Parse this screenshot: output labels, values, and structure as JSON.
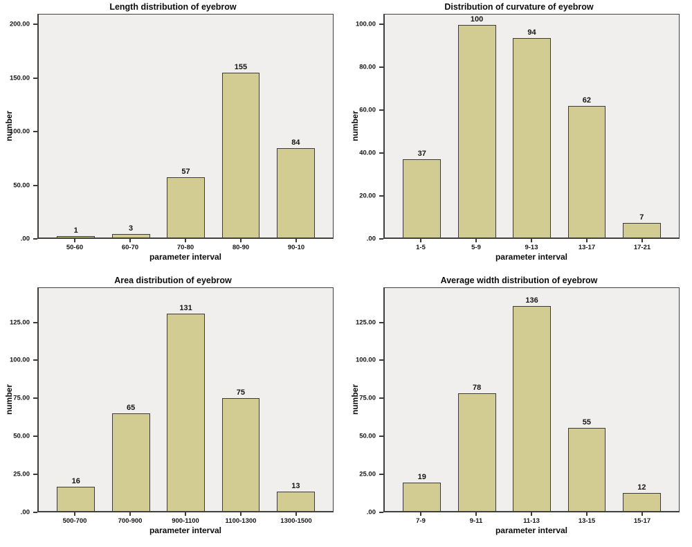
{
  "colors": {
    "page_background": "#ffffff",
    "plot_background": "#f0efee",
    "bar_fill": "#d2cc93",
    "bar_border": "#3a3a33",
    "axis_frame": "#3f3f3f",
    "text": "#111111"
  },
  "chart_data": [
    {
      "type": "bar",
      "title": "Length distribution of eyebrow",
      "xlabel": "parameter interval",
      "ylabel": "number",
      "categories": [
        "50-60",
        "60-70",
        "70-80",
        "80-90",
        "90-10"
      ],
      "values": [
        1,
        3,
        57,
        155,
        84
      ],
      "yticks": [
        {
          "value": 0,
          "label": ".00"
        },
        {
          "value": 50,
          "label": "50.00"
        },
        {
          "value": 100,
          "label": "100.00"
        },
        {
          "value": 150,
          "label": "150.00"
        },
        {
          "value": 200,
          "label": "200.00"
        }
      ],
      "ylim": [
        0,
        210
      ],
      "grid": false,
      "legend": "none"
    },
    {
      "type": "bar",
      "title": "Distribution of  curvature of eyebrow",
      "xlabel": "parameter interval",
      "ylabel": "number",
      "categories": [
        "1-5",
        "5-9",
        "9-13",
        "13-17",
        "17-21"
      ],
      "values": [
        37,
        100,
        94,
        62,
        7
      ],
      "yticks": [
        {
          "value": 0,
          "label": ".00"
        },
        {
          "value": 20,
          "label": "20.00"
        },
        {
          "value": 40,
          "label": "40.00"
        },
        {
          "value": 60,
          "label": "60.00"
        },
        {
          "value": 80,
          "label": "80.00"
        },
        {
          "value": 100,
          "label": "100.00"
        }
      ],
      "ylim": [
        0,
        105
      ],
      "grid": false,
      "legend": "none"
    },
    {
      "type": "bar",
      "title": "Area distribution of eyebrow",
      "xlabel": "parameter interval",
      "ylabel": "number",
      "categories": [
        "500-700",
        "700-900",
        "900-1100",
        "1100-1300",
        "1300-1500"
      ],
      "values": [
        16,
        65,
        131,
        75,
        13
      ],
      "yticks": [
        {
          "value": 0,
          "label": ".00"
        },
        {
          "value": 25,
          "label": "25.00"
        },
        {
          "value": 50,
          "label": "50.00"
        },
        {
          "value": 75,
          "label": "75.00"
        },
        {
          "value": 100,
          "label": "100.00"
        },
        {
          "value": 125,
          "label": "125.00"
        }
      ],
      "ylim": [
        0,
        148
      ],
      "grid": false,
      "legend": "none"
    },
    {
      "type": "bar",
      "title": "Average width distribution of eyebrow",
      "xlabel": "parameter interval",
      "ylabel": "number",
      "categories": [
        "7-9",
        "9-11",
        "11-13",
        "13-15",
        "15-17"
      ],
      "values": [
        19,
        78,
        136,
        55,
        12
      ],
      "yticks": [
        {
          "value": 0,
          "label": ".00"
        },
        {
          "value": 25,
          "label": "25.00"
        },
        {
          "value": 50,
          "label": "50.00"
        },
        {
          "value": 75,
          "label": "75.00"
        },
        {
          "value": 100,
          "label": "100.00"
        },
        {
          "value": 125,
          "label": "125.00"
        }
      ],
      "ylim": [
        0,
        148
      ],
      "grid": false,
      "legend": "none"
    }
  ]
}
